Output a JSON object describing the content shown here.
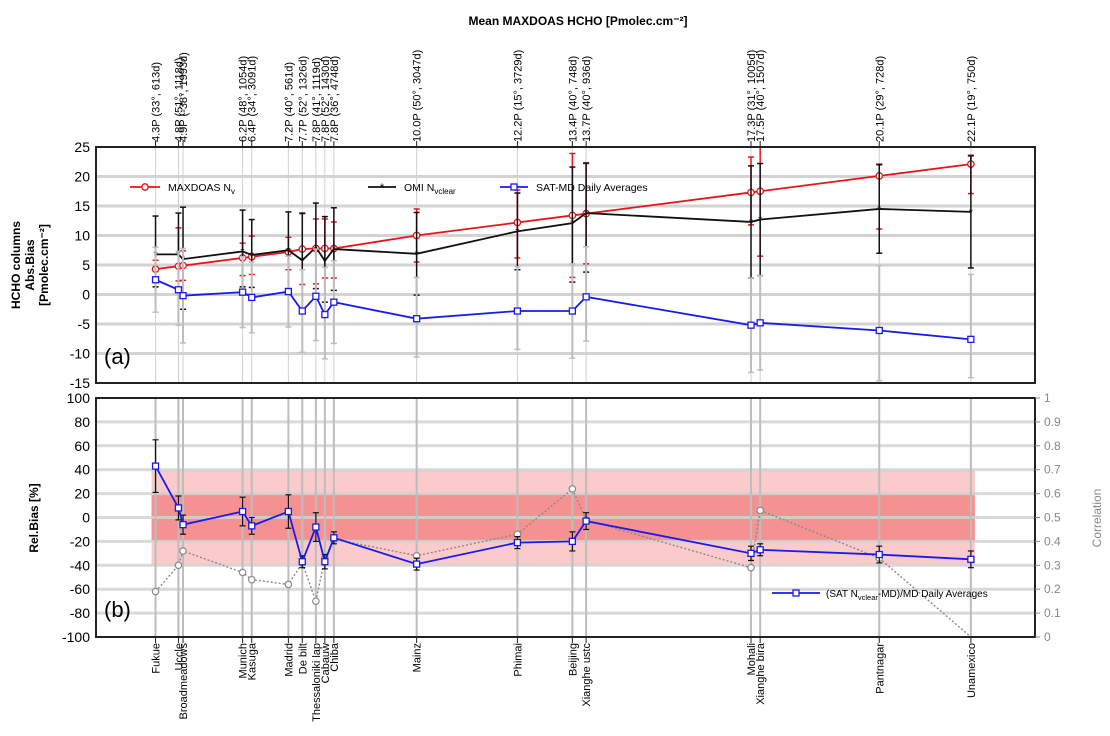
{
  "chart_data": [
    {
      "type": "line",
      "panel_label": "(a)",
      "top_axis_title": "Mean MAXDOAS HCHO [Pmolec.cm⁻²]",
      "ylabel_lines": [
        "HCHO columns",
        "Abs.Bias",
        "[Pmolec.cm⁻²]"
      ],
      "ylim": [
        -15,
        25
      ],
      "yticks": [
        -15,
        -10,
        -5,
        0,
        5,
        10,
        15,
        20,
        25
      ],
      "grid": true,
      "legend_position": "top",
      "stations": [
        "Fukue",
        "Uccle",
        "Broadmeadows",
        "Munich",
        "Kasuga",
        "Madrid",
        "De bilt",
        "Thessaloniki lap",
        "Cabauw",
        "Chiba",
        "Mainz",
        "Phimai",
        "Beijing",
        "Xianghe ustc",
        "Mohali",
        "Xianghe bira",
        "Pantnagar",
        "Unamexico"
      ],
      "x": [
        4.3,
        4.8,
        4.9,
        6.2,
        6.4,
        7.2,
        7.7,
        7.8,
        7.8,
        7.8,
        10.0,
        12.2,
        13.4,
        13.7,
        17.3,
        17.5,
        20.1,
        22.1
      ],
      "top_tick_labels": [
        "4.3P (33°, 613d)",
        "4.8P (51°, 1118d)",
        "4.9P (-38°, 1993d)",
        "6.2P (48°, 1054d)",
        "6.4P (34°, 3091d)",
        "7.2P (40°, 561d)",
        "7.7P (52°, 1326d)",
        "7.8P (41°, 1119d)",
        "7.8P (52°, 1430d)",
        "7.8P (36°, 4748d)",
        "10.0P (50°, 3047d)",
        "12.2P (15°, 3729d)",
        "13.4P (40°, 748d)",
        "13.7P (40°, 936d)",
        "17.3P (31°, 1005d)",
        "17.5P (40°, 1507d)",
        "20.1P (29°, 728d)",
        "22.1P (19°, 750d)"
      ],
      "series": [
        {
          "name": "MAXDOAS N",
          "name_sub": "v",
          "color": "#e8141c",
          "marker": "circle",
          "values": [
            4.3,
            4.8,
            4.9,
            6.2,
            6.4,
            7.2,
            7.7,
            7.8,
            7.8,
            7.8,
            10.0,
            12.2,
            13.4,
            13.7,
            17.3,
            17.5,
            20.1,
            22.1
          ],
          "err_low": [
            3.0,
            2.5,
            2.5,
            3.0,
            3.0,
            3.0,
            6.0,
            6.0,
            5.0,
            5.0,
            4.5,
            6.0,
            10.5,
            8.5,
            5.5,
            11.0,
            9.0,
            5.0
          ],
          "err_high": [
            1.5,
            6.5,
            2.5,
            2.5,
            3.5,
            2.5,
            6.0,
            5.0,
            5.0,
            4.5,
            4.5,
            5.5,
            10.5,
            8.5,
            6.0,
            11.0,
            2.0,
            1.5
          ]
        },
        {
          "name": "OMI N",
          "name_sub": "vclear",
          "color": "#111111",
          "marker": "star",
          "values": [
            6.8,
            6.8,
            6.0,
            7.3,
            6.7,
            7.5,
            5.8,
            8.0,
            5.7,
            7.7,
            6.9,
            10.7,
            12.1,
            13.8,
            12.3,
            12.7,
            14.5,
            14.0
          ],
          "err_low": [
            5.5,
            6.0,
            8.5,
            6.0,
            5.5,
            6.5,
            9.0,
            7.0,
            7.0,
            7.0,
            7.0,
            6.5,
            10.0,
            10.0,
            9.5,
            9.5,
            7.5,
            9.5
          ],
          "err_high": [
            6.5,
            7.0,
            8.8,
            7.0,
            6.0,
            6.5,
            8.0,
            7.5,
            7.5,
            7.0,
            7.0,
            6.5,
            9.5,
            8.5,
            9.5,
            9.5,
            7.5,
            9.5
          ]
        },
        {
          "name": "SAT-MD Daily Averages",
          "color": "#1a1aee",
          "marker": "square",
          "values": [
            2.5,
            0.8,
            -0.2,
            0.4,
            -0.5,
            0.5,
            -2.8,
            -0.3,
            -3.4,
            -1.3,
            -4.1,
            -2.8,
            -2.8,
            -0.4,
            -5.2,
            -4.8,
            -6.1,
            -7.6
          ],
          "err_low": [
            5.5,
            6.0,
            8.0,
            6.0,
            6.0,
            6.0,
            7.0,
            7.5,
            7.5,
            7.0,
            6.5,
            6.5,
            8.0,
            7.5,
            8.0,
            8.0,
            8.5,
            6.5
          ],
          "err_high": [
            5.5,
            6.5,
            8.0,
            6.0,
            6.0,
            6.0,
            7.0,
            8.0,
            8.0,
            7.0,
            7.0,
            7.5,
            8.0,
            8.5,
            8.0,
            8.0,
            11.0,
            11.0
          ]
        }
      ]
    },
    {
      "type": "line",
      "panel_label": "(b)",
      "ylabel": "Rel.Bias [%]",
      "y2label": "Correlation",
      "ylim": [
        -100,
        100
      ],
      "yticks": [
        -100,
        -80,
        -60,
        -40,
        -20,
        0,
        20,
        40,
        60,
        80,
        100
      ],
      "y2lim": [
        0,
        1
      ],
      "y2ticks": [
        "0",
        "0.1",
        "0.2",
        "0.3",
        "0.4",
        "0.5",
        "0.6",
        "0.7",
        "0.8",
        "0.9",
        "1"
      ],
      "shaded_bands": [
        {
          "from": -40,
          "to": 40,
          "color": "#fbcaca"
        },
        {
          "from": -20,
          "to": 20,
          "color": "#f59191"
        }
      ],
      "stations": [
        "Fukue",
        "Uccle",
        "Broadmeadows",
        "Munich",
        "Kasuga",
        "Madrid",
        "De bilt",
        "Thessaloniki lap",
        "Cabauw",
        "Chiba",
        "Mainz",
        "Phimai",
        "Beijing",
        "Xianghe ustc",
        "Mohali",
        "Xianghe bira",
        "Pantnagar",
        "Unamexico"
      ],
      "series": [
        {
          "name": "(SAT N",
          "name_sub": "vclear",
          "name_tail": "-MD)/MD Daily Averages",
          "color": "#1a1aee",
          "marker": "square",
          "values": [
            43,
            8,
            -6,
            5,
            -7,
            5,
            -37,
            -8,
            -37,
            -17,
            -39,
            -21,
            -20,
            -3,
            -30,
            -27,
            -31,
            -35
          ],
          "err": [
            22,
            10,
            8,
            12,
            7,
            14,
            5,
            12,
            6,
            5,
            5,
            5,
            8,
            7,
            6,
            5,
            7,
            7
          ]
        },
        {
          "name": "Correlation",
          "color": "#8a8a8a",
          "marker": "circle",
          "axis": "right",
          "values": [
            0.19,
            0.3,
            0.36,
            0.27,
            0.24,
            0.22,
            0.31,
            0.15,
            0.33,
            0.41,
            0.34,
            0.43,
            0.62,
            0.49,
            0.29,
            0.53,
            0.33,
            0.0
          ]
        }
      ]
    }
  ]
}
